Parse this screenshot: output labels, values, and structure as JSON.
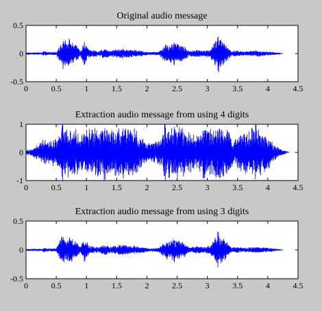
{
  "figure": {
    "background": "#c8c8c8",
    "axes_background": "#ffffff",
    "signal_color": "#0000ff"
  },
  "chart_data": [
    {
      "type": "line",
      "title": "Original audio message",
      "xlabel": "",
      "ylabel": "",
      "xlim": [
        0,
        4.5
      ],
      "ylim": [
        -0.5,
        0.5
      ],
      "xticks": [
        "0",
        "0.5",
        "1",
        "1.5",
        "2",
        "2.5",
        "3",
        "3.5",
        "4",
        "4.5"
      ],
      "yticks": [
        "0.5",
        "0",
        "-0.5"
      ],
      "grid": false,
      "signal_end": 4.2,
      "envelope": [
        [
          0.25,
          0.01
        ],
        [
          0.3,
          0.05
        ],
        [
          0.35,
          0.03
        ],
        [
          0.5,
          0.03
        ],
        [
          0.55,
          0.15
        ],
        [
          0.6,
          0.25
        ],
        [
          0.7,
          0.24
        ],
        [
          0.8,
          0.2
        ],
        [
          0.85,
          0.14
        ],
        [
          0.9,
          0.05
        ],
        [
          0.95,
          0.2
        ],
        [
          1.0,
          0.16
        ],
        [
          1.05,
          0.08
        ],
        [
          1.2,
          0.05
        ],
        [
          1.3,
          0.1
        ],
        [
          1.4,
          0.06
        ],
        [
          1.55,
          0.1
        ],
        [
          1.7,
          0.08
        ],
        [
          1.85,
          0.07
        ],
        [
          1.95,
          0.05
        ],
        [
          2.05,
          0.03
        ],
        [
          2.2,
          0.04
        ],
        [
          2.3,
          0.17
        ],
        [
          2.45,
          0.2
        ],
        [
          2.6,
          0.16
        ],
        [
          2.7,
          0.05
        ],
        [
          2.85,
          0.08
        ],
        [
          2.95,
          0.06
        ],
        [
          3.05,
          0.08
        ],
        [
          3.15,
          0.28
        ],
        [
          3.2,
          0.3
        ],
        [
          3.3,
          0.18
        ],
        [
          3.4,
          0.05
        ],
        [
          3.5,
          0.06
        ],
        [
          3.6,
          0.04
        ],
        [
          3.7,
          0.05
        ],
        [
          3.8,
          0.06
        ],
        [
          3.9,
          0.05
        ],
        [
          4.0,
          0.04
        ],
        [
          4.1,
          0.03
        ],
        [
          4.2,
          0.01
        ]
      ],
      "peaks": [
        0.62,
        0.72,
        0.97,
        2.45,
        3.18,
        3.22
      ]
    },
    {
      "type": "line",
      "title": "Extraction audio message from using 4 digits",
      "xlabel": "",
      "ylabel": "",
      "xlim": [
        0,
        4.5
      ],
      "ylim": [
        -1,
        1
      ],
      "xticks": [
        "0",
        "0.5",
        "1",
        "1.5",
        "2",
        "2.5",
        "3",
        "3.5",
        "4",
        "4.5"
      ],
      "yticks": [
        "1",
        "0",
        "-1"
      ],
      "grid": false,
      "signal_end": 4.3,
      "envelope": [
        [
          0.0,
          0.1
        ],
        [
          0.1,
          0.15
        ],
        [
          0.2,
          0.3
        ],
        [
          0.3,
          0.55
        ],
        [
          0.4,
          0.45
        ],
        [
          0.5,
          0.55
        ],
        [
          0.6,
          0.95
        ],
        [
          0.8,
          0.98
        ],
        [
          0.9,
          0.7
        ],
        [
          1.0,
          0.95
        ],
        [
          1.2,
          0.9
        ],
        [
          1.4,
          0.85
        ],
        [
          1.6,
          0.95
        ],
        [
          1.8,
          0.9
        ],
        [
          1.9,
          0.6
        ],
        [
          2.0,
          0.35
        ],
        [
          2.1,
          0.4
        ],
        [
          2.2,
          0.5
        ],
        [
          2.3,
          0.95
        ],
        [
          2.5,
          0.98
        ],
        [
          2.7,
          0.85
        ],
        [
          2.8,
          0.6
        ],
        [
          2.9,
          0.95
        ],
        [
          3.1,
          0.98
        ],
        [
          3.3,
          0.95
        ],
        [
          3.45,
          0.5
        ],
        [
          3.6,
          0.85
        ],
        [
          3.8,
          0.95
        ],
        [
          3.9,
          0.8
        ],
        [
          4.0,
          0.75
        ],
        [
          4.1,
          0.3
        ],
        [
          4.2,
          0.15
        ],
        [
          4.3,
          0.05
        ]
      ],
      "peaks": [
        0.6,
        1.3,
        1.6,
        2.3,
        2.95,
        3.2,
        3.8
      ]
    },
    {
      "type": "line",
      "title": "Extraction audio message from using 3 digits",
      "xlabel": "",
      "ylabel": "",
      "xlim": [
        0,
        4.5
      ],
      "ylim": [
        -0.5,
        0.5
      ],
      "xticks": [
        "0",
        "0.5",
        "1",
        "1.5",
        "2",
        "2.5",
        "3",
        "3.5",
        "4",
        "4.5"
      ],
      "yticks": [
        "0.5",
        "0",
        "-0.5"
      ],
      "grid": false,
      "signal_end": 4.2,
      "envelope": [
        [
          0.25,
          0.01
        ],
        [
          0.3,
          0.05
        ],
        [
          0.35,
          0.03
        ],
        [
          0.5,
          0.03
        ],
        [
          0.55,
          0.15
        ],
        [
          0.6,
          0.25
        ],
        [
          0.7,
          0.24
        ],
        [
          0.8,
          0.2
        ],
        [
          0.85,
          0.14
        ],
        [
          0.9,
          0.05
        ],
        [
          0.95,
          0.2
        ],
        [
          1.0,
          0.16
        ],
        [
          1.05,
          0.08
        ],
        [
          1.2,
          0.05
        ],
        [
          1.3,
          0.1
        ],
        [
          1.4,
          0.06
        ],
        [
          1.55,
          0.1
        ],
        [
          1.7,
          0.08
        ],
        [
          1.85,
          0.07
        ],
        [
          1.95,
          0.05
        ],
        [
          2.05,
          0.03
        ],
        [
          2.2,
          0.04
        ],
        [
          2.3,
          0.17
        ],
        [
          2.45,
          0.2
        ],
        [
          2.6,
          0.16
        ],
        [
          2.7,
          0.05
        ],
        [
          2.85,
          0.08
        ],
        [
          2.95,
          0.06
        ],
        [
          3.05,
          0.08
        ],
        [
          3.15,
          0.28
        ],
        [
          3.2,
          0.3
        ],
        [
          3.3,
          0.18
        ],
        [
          3.4,
          0.05
        ],
        [
          3.5,
          0.06
        ],
        [
          3.6,
          0.04
        ],
        [
          3.7,
          0.05
        ],
        [
          3.8,
          0.06
        ],
        [
          3.9,
          0.05
        ],
        [
          4.0,
          0.04
        ],
        [
          4.1,
          0.03
        ],
        [
          4.2,
          0.01
        ]
      ],
      "peaks": [
        0.62,
        0.72,
        0.97,
        2.45,
        3.18,
        3.22
      ]
    }
  ]
}
